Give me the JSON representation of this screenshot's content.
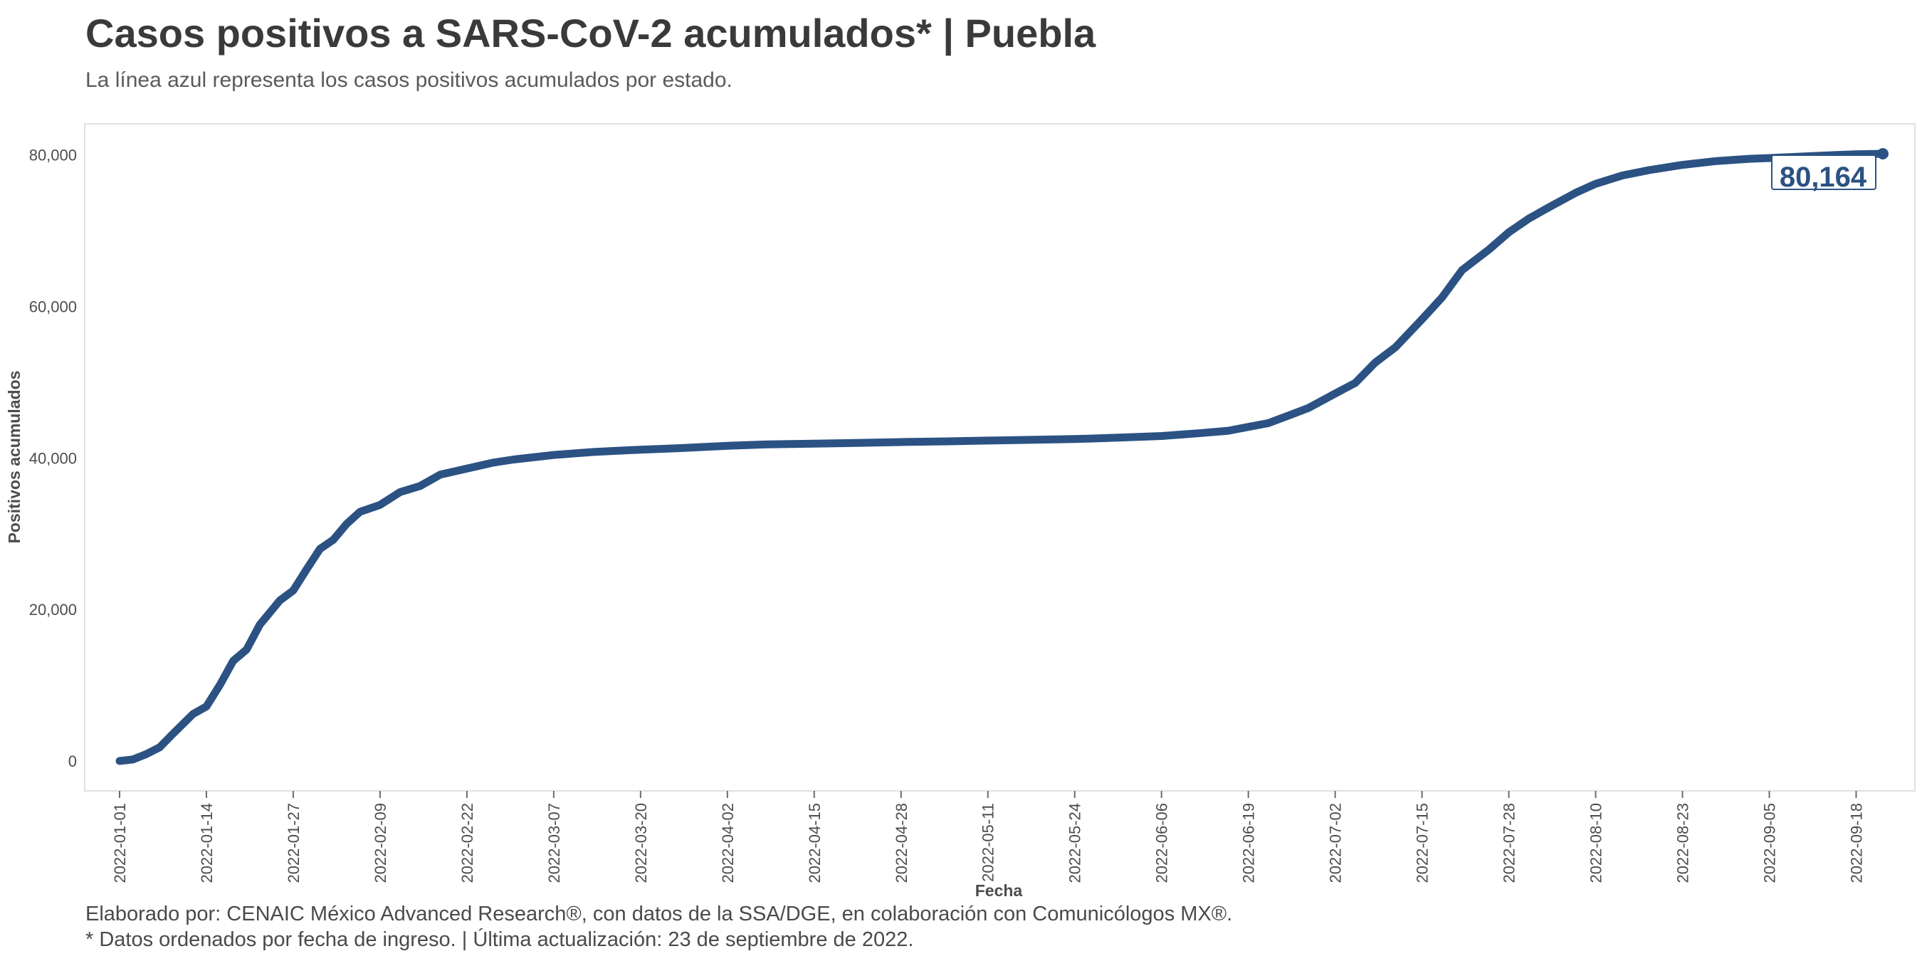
{
  "header": {
    "title": "Casos positivos a SARS-CoV-2 acumulados* | Puebla",
    "subtitle": "La línea azul representa los casos positivos acumulados por estado."
  },
  "footer": {
    "line1": "Elaborado por: CENAIC México Advanced Research®, con datos de la SSA/DGE, en colaboración con Comunicólogos MX®.",
    "line2": "* Datos ordenados por fecha de ingreso. | Última actualización: 23 de septiembre de 2022."
  },
  "chart_data": {
    "type": "line",
    "title": "Casos positivos a SARS-CoV-2 acumulados* | Puebla",
    "subtitle": "La línea azul representa los casos positivos acumulados por estado.",
    "xlabel": "Fecha",
    "ylabel": "Positivos acumulados",
    "xlim": [
      "2022-01-01",
      "2022-09-22"
    ],
    "ylim": [
      0,
      80164
    ],
    "yticks": [
      0,
      20000,
      40000,
      60000,
      80000
    ],
    "ytick_labels": [
      "0",
      "20,000",
      "40,000",
      "60,000",
      "80,000"
    ],
    "xticks": [
      "2022-01-01",
      "2022-01-14",
      "2022-01-27",
      "2022-02-09",
      "2022-02-22",
      "2022-03-07",
      "2022-03-20",
      "2022-04-02",
      "2022-04-15",
      "2022-04-28",
      "2022-05-11",
      "2022-05-24",
      "2022-06-06",
      "2022-06-19",
      "2022-07-02",
      "2022-07-15",
      "2022-07-28",
      "2022-08-10",
      "2022-08-23",
      "2022-09-05",
      "2022-09-18"
    ],
    "grid": false,
    "line_color": "#2b5283",
    "end_label": "80,164",
    "series": [
      {
        "x": [
          "2022-01-01",
          "2022-01-03",
          "2022-01-05",
          "2022-01-07",
          "2022-01-09",
          "2022-01-12",
          "2022-01-14",
          "2022-01-16",
          "2022-01-18",
          "2022-01-20",
          "2022-01-22",
          "2022-01-25",
          "2022-01-27",
          "2022-01-29",
          "2022-01-31",
          "2022-02-02",
          "2022-02-04",
          "2022-02-06",
          "2022-02-09",
          "2022-02-12",
          "2022-02-15",
          "2022-02-18",
          "2022-02-22",
          "2022-02-26",
          "2022-03-01",
          "2022-03-07",
          "2022-03-13",
          "2022-03-20",
          "2022-03-26",
          "2022-04-02",
          "2022-04-08",
          "2022-04-15",
          "2022-04-22",
          "2022-04-28",
          "2022-05-05",
          "2022-05-11",
          "2022-05-18",
          "2022-05-24",
          "2022-05-31",
          "2022-06-06",
          "2022-06-12",
          "2022-06-16",
          "2022-06-19",
          "2022-06-22",
          "2022-06-25",
          "2022-06-28",
          "2022-07-02",
          "2022-07-05",
          "2022-07-08",
          "2022-07-11",
          "2022-07-15",
          "2022-07-18",
          "2022-07-21",
          "2022-07-25",
          "2022-07-28",
          "2022-07-31",
          "2022-08-03",
          "2022-08-07",
          "2022-08-10",
          "2022-08-14",
          "2022-08-18",
          "2022-08-23",
          "2022-08-28",
          "2022-09-02",
          "2022-09-05",
          "2022-09-10",
          "2022-09-15",
          "2022-09-18",
          "2022-09-22"
        ],
        "y": [
          0,
          200,
          900,
          1800,
          3600,
          6200,
          7200,
          10000,
          13200,
          14700,
          18000,
          21200,
          22500,
          25300,
          28000,
          29200,
          31300,
          32900,
          33800,
          35500,
          36300,
          37800,
          38600,
          39400,
          39800,
          40400,
          40800,
          41100,
          41300,
          41600,
          41800,
          41900,
          42000,
          42100,
          42200,
          42300,
          42400,
          42500,
          42700,
          42900,
          43300,
          43600,
          44100,
          44600,
          45600,
          46600,
          48500,
          49900,
          52600,
          54600,
          58300,
          61200,
          64800,
          67500,
          69800,
          71600,
          73100,
          75000,
          76200,
          77300,
          78000,
          78700,
          79200,
          79500,
          79600,
          79800,
          80000,
          80100,
          80164
        ]
      }
    ]
  }
}
